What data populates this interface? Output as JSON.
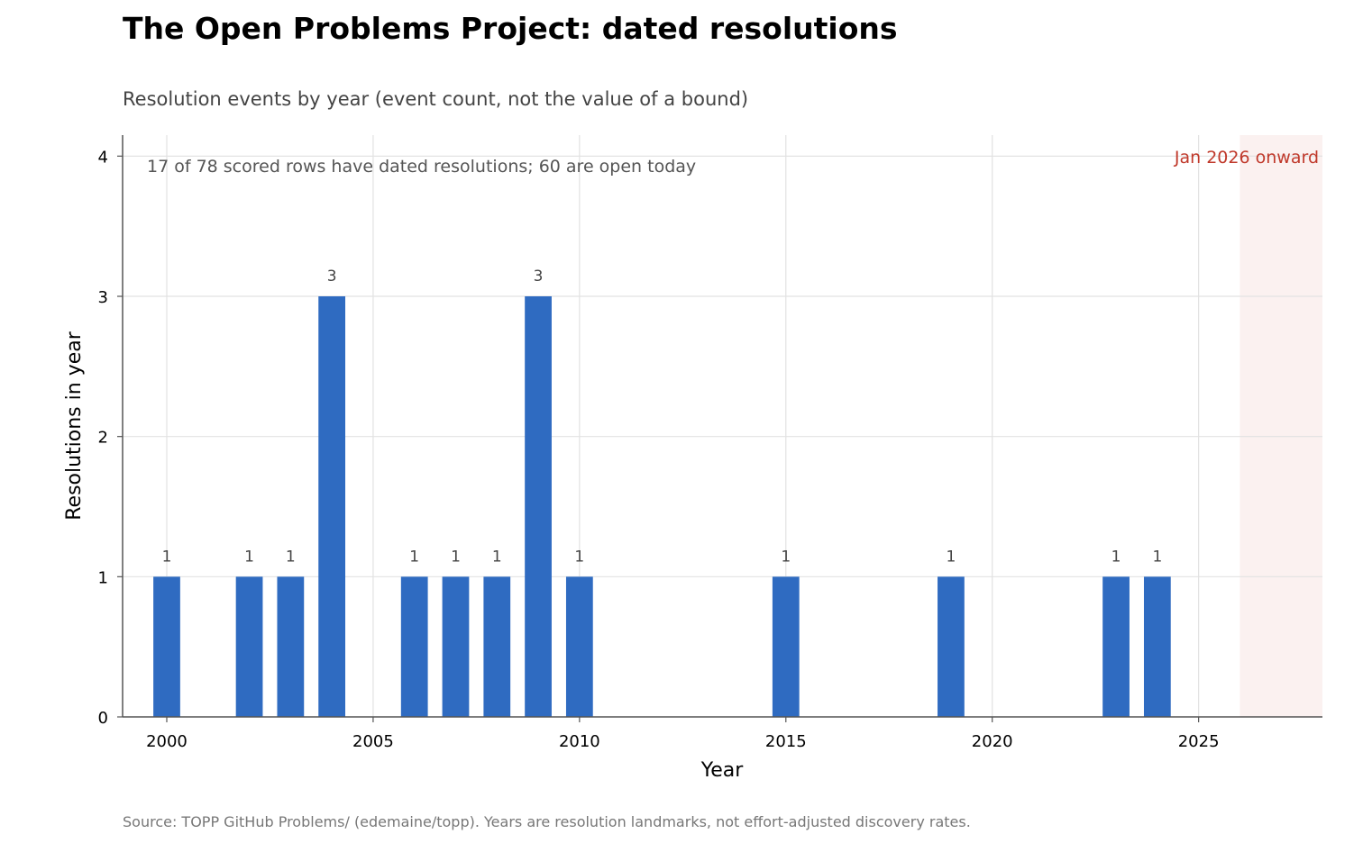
{
  "title": "The Open Problems Project: dated resolutions",
  "subtitle": "Resolution events by year (event count, not the value of a bound)",
  "source": "Source: TOPP GitHub Problems/ (edemaine/topp). Years are resolution landmarks, not effort-adjusted discovery rates.",
  "chart_data": {
    "type": "bar",
    "xlabel": "Year",
    "ylabel": "Resolutions in year",
    "x": [
      2000,
      2002,
      2003,
      2004,
      2006,
      2007,
      2008,
      2009,
      2010,
      2015,
      2019,
      2023,
      2024
    ],
    "values": [
      1,
      1,
      1,
      3,
      1,
      1,
      1,
      3,
      1,
      1,
      1,
      1,
      1
    ],
    "data_labels": [
      "1",
      "1",
      "1",
      "3",
      "1",
      "1",
      "1",
      "3",
      "1",
      "1",
      "1",
      "1",
      "1"
    ],
    "xlim": [
      1998.93,
      2028.0
    ],
    "ylim": [
      0,
      4.15
    ],
    "xticks": [
      2000,
      2005,
      2010,
      2015,
      2020,
      2025
    ],
    "yticks": [
      0,
      1,
      2,
      3,
      4
    ],
    "grid": true,
    "bar_color": "#2f6bc1",
    "annotation": "17 of 78 scored rows have dated resolutions; 60 are open today",
    "shaded_region": {
      "from": 2026.0,
      "to": 2028.0,
      "label": "Jan 2026 onward",
      "color": "#c0392b"
    }
  }
}
